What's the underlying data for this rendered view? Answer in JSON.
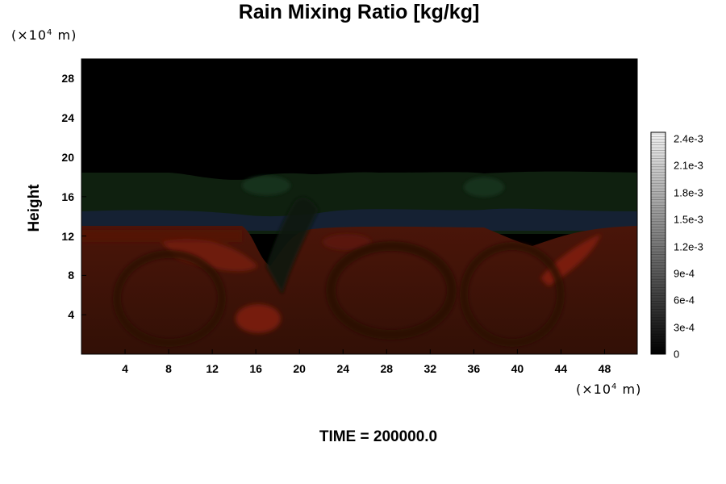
{
  "title": "Rain Mixing Ratio [kg/kg]",
  "time_label": "TIME = 200000.0",
  "chart_data": {
    "type": "heatmap",
    "title": "Rain Mixing Ratio [kg/kg]",
    "ylabel": "Height",
    "y_unit": {
      "base": "(×10",
      "exp": "4",
      "tail": " m)"
    },
    "x_unit": {
      "base": "(×10",
      "exp": "4",
      "tail": " m)"
    },
    "xlim": [
      0,
      51
    ],
    "ylim": [
      0,
      30
    ],
    "xticks": [
      "4",
      "8",
      "12",
      "16",
      "20",
      "24",
      "28",
      "32",
      "36",
      "40",
      "44",
      "48"
    ],
    "yticks": [
      "4",
      "8",
      "12",
      "16",
      "20",
      "24",
      "28"
    ],
    "colorbar": {
      "ticks": [
        "2.4e-3",
        "2.1e-3",
        "1.8e-3",
        "1.5e-3",
        "1.2e-3",
        "9e-4",
        "6e-4",
        "3e-4",
        "0"
      ],
      "range": [
        0,
        0.0025
      ]
    },
    "colors": {
      "background": "#000000",
      "lower_field": "#3a1308",
      "upper_band": "#0f200f",
      "transition": "#162133",
      "highlight": "#7a1a0c"
    }
  }
}
